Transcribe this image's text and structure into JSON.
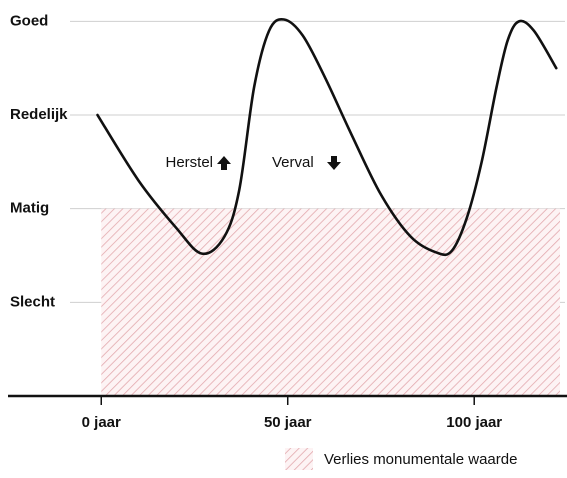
{
  "chart_data": {
    "type": "line",
    "x": [
      -1,
      10,
      20,
      27,
      33,
      37,
      41,
      45,
      49,
      54,
      60,
      67,
      75,
      83,
      90,
      94,
      98,
      102,
      106,
      109,
      112,
      116,
      122
    ],
    "values": [
      3.0,
      2.3,
      1.8,
      1.52,
      1.7,
      2.2,
      3.3,
      3.9,
      4.02,
      3.85,
      3.4,
      2.8,
      2.15,
      1.7,
      1.53,
      1.55,
      1.9,
      2.5,
      3.3,
      3.8,
      4.0,
      3.9,
      3.5
    ],
    "color": "#111111",
    "xlim": [
      -25,
      123
    ],
    "ylim": [
      0,
      4.1
    ],
    "xticks": [
      {
        "value": 0,
        "label": "0 jaar"
      },
      {
        "value": 50,
        "label": "50 jaar"
      },
      {
        "value": 100,
        "label": "100 jaar"
      }
    ],
    "yticks": [
      {
        "value": 1,
        "label": "Slecht"
      },
      {
        "value": 2,
        "label": "Matig"
      },
      {
        "value": 3,
        "label": "Redelijk"
      },
      {
        "value": 4,
        "label": "Goed"
      }
    ],
    "grid": true,
    "shaded_region": {
      "name": "Verlies monumentale waarde",
      "color": "#e3a9ae",
      "x": [
        0,
        123
      ],
      "y": [
        0,
        2
      ]
    },
    "annotations": [
      "Herstel",
      "Verval"
    ]
  }
}
